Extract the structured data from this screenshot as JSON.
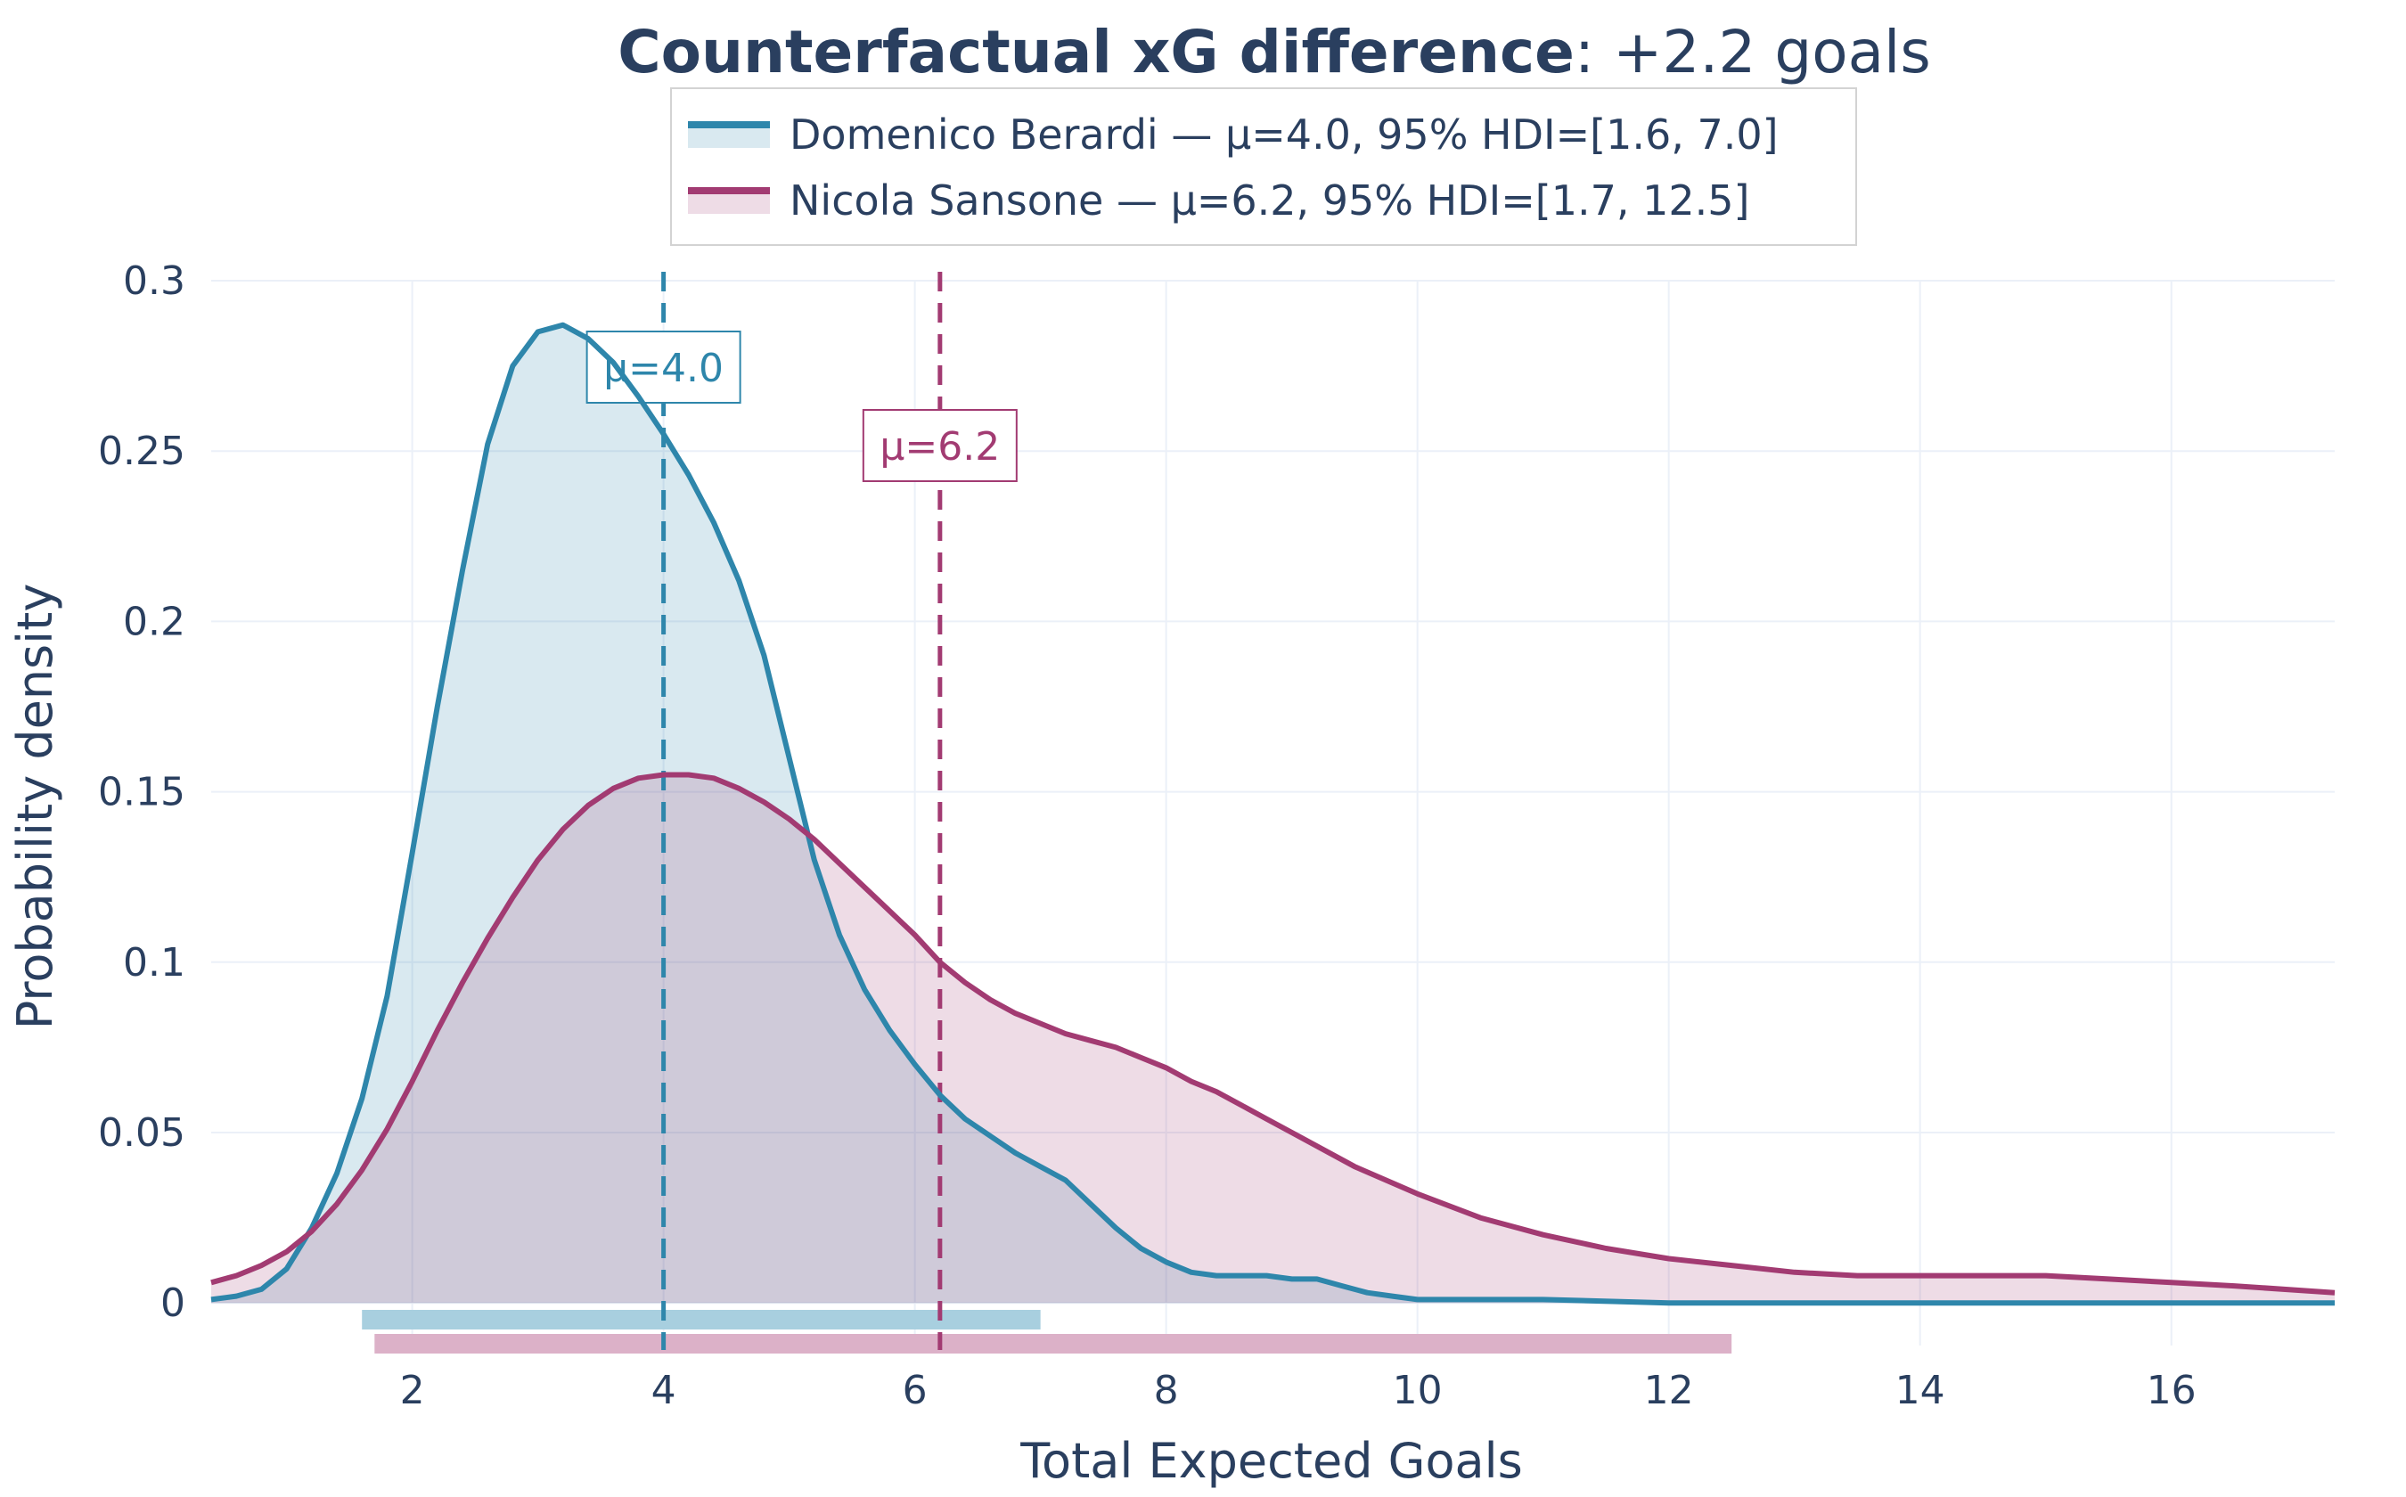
{
  "title": {
    "bold": "Counterfactual xG difference",
    "rest": ": +2.2 goals"
  },
  "colors": {
    "blue": "#2e86ab",
    "blue_fill": "rgba(46,134,171,0.18)",
    "blue_hdi": "#a8cfdf",
    "magenta": "#a23b72",
    "magenta_fill": "rgba(162,59,114,0.18)",
    "magenta_hdi": "#dcb1c8",
    "grid": "#ebf0f8",
    "text": "#2a3f5f"
  },
  "chart_data": {
    "type": "area",
    "xlabel": "Total Expected Goals",
    "ylabel": "Probability density",
    "xlim": [
      0.4,
      17.3
    ],
    "ylim": [
      -0.0125,
      0.3
    ],
    "x_ticks": [
      2,
      4,
      6,
      8,
      10,
      12,
      14,
      16
    ],
    "x_tick_labels": [
      "2",
      "4",
      "6",
      "8",
      "10",
      "12",
      "14",
      "16"
    ],
    "y_ticks": [
      0,
      0.05,
      0.1,
      0.15,
      0.2,
      0.25,
      0.3
    ],
    "y_tick_labels": [
      "0",
      "0.05",
      "0.1",
      "0.15",
      "0.2",
      "0.25",
      "0.3"
    ],
    "series": [
      {
        "name": "Domenico Berardi",
        "legend": "Domenico Berardi — μ=4.0, 95% HDI=[1.6, 7.0]",
        "mean": 4.0,
        "mean_label": "μ=4.0",
        "hdi": [
          1.6,
          7.0
        ],
        "x": [
          0.4,
          0.6,
          0.8,
          1.0,
          1.2,
          1.4,
          1.6,
          1.8,
          2.0,
          2.2,
          2.4,
          2.6,
          2.8,
          3.0,
          3.2,
          3.4,
          3.6,
          3.8,
          4.0,
          4.2,
          4.4,
          4.6,
          4.8,
          5.0,
          5.2,
          5.4,
          5.6,
          5.8,
          6.0,
          6.2,
          6.4,
          6.6,
          6.8,
          7.0,
          7.2,
          7.4,
          7.6,
          7.8,
          8.0,
          8.2,
          8.4,
          8.6,
          8.8,
          9.0,
          9.2,
          9.4,
          9.6,
          9.8,
          10.0,
          10.5,
          11.0,
          12.0,
          13.0,
          14.0,
          15.0,
          16.0,
          17.3
        ],
        "y": [
          0.001,
          0.002,
          0.004,
          0.01,
          0.022,
          0.038,
          0.06,
          0.09,
          0.132,
          0.175,
          0.215,
          0.252,
          0.275,
          0.285,
          0.287,
          0.283,
          0.276,
          0.266,
          0.255,
          0.243,
          0.229,
          0.212,
          0.19,
          0.16,
          0.13,
          0.108,
          0.092,
          0.08,
          0.07,
          0.061,
          0.054,
          0.049,
          0.044,
          0.04,
          0.036,
          0.029,
          0.022,
          0.016,
          0.012,
          0.009,
          0.008,
          0.008,
          0.008,
          0.007,
          0.007,
          0.005,
          0.003,
          0.002,
          0.001,
          0.001,
          0.001,
          0.0,
          0.0,
          0.0,
          0.0,
          0.0,
          0.0
        ]
      },
      {
        "name": "Nicola Sansone",
        "legend": "Nicola Sansone — μ=6.2, 95% HDI=[1.7, 12.5]",
        "mean": 6.2,
        "mean_label": "μ=6.2",
        "hdi": [
          1.7,
          12.5
        ],
        "x": [
          0.4,
          0.6,
          0.8,
          1.0,
          1.2,
          1.4,
          1.6,
          1.8,
          2.0,
          2.2,
          2.4,
          2.6,
          2.8,
          3.0,
          3.2,
          3.4,
          3.6,
          3.8,
          4.0,
          4.2,
          4.4,
          4.6,
          4.8,
          5.0,
          5.2,
          5.4,
          5.6,
          5.8,
          6.0,
          6.2,
          6.4,
          6.6,
          6.8,
          7.0,
          7.2,
          7.4,
          7.6,
          7.8,
          8.0,
          8.2,
          8.4,
          8.6,
          8.8,
          9.0,
          9.5,
          10.0,
          10.5,
          11.0,
          11.5,
          12.0,
          12.5,
          13.0,
          13.5,
          14.0,
          14.5,
          15.0,
          15.5,
          16.0,
          16.5,
          17.3
        ],
        "y": [
          0.006,
          0.008,
          0.011,
          0.015,
          0.021,
          0.029,
          0.039,
          0.051,
          0.065,
          0.08,
          0.094,
          0.107,
          0.119,
          0.13,
          0.139,
          0.146,
          0.151,
          0.154,
          0.155,
          0.155,
          0.154,
          0.151,
          0.147,
          0.142,
          0.136,
          0.129,
          0.122,
          0.115,
          0.108,
          0.1,
          0.094,
          0.089,
          0.085,
          0.082,
          0.079,
          0.077,
          0.075,
          0.072,
          0.069,
          0.065,
          0.062,
          0.058,
          0.054,
          0.05,
          0.04,
          0.032,
          0.025,
          0.02,
          0.016,
          0.013,
          0.011,
          0.009,
          0.008,
          0.008,
          0.008,
          0.008,
          0.007,
          0.006,
          0.005,
          0.003
        ]
      }
    ]
  }
}
